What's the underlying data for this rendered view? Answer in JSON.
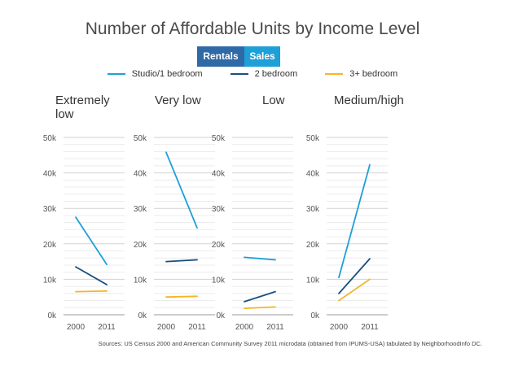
{
  "title": "Number of Affordable Units by Income Level",
  "toggle": {
    "rentals_label": "Rentals",
    "sales_label": "Sales"
  },
  "source": "Sources: US Census 2000 and American Community Survey 2011 microdata (obtained from IPUMS-USA) tabulated by NeighborhoodInfo DC.",
  "colors": {
    "studio": "#1e9fd8",
    "two_bed": "#1b4f80",
    "three_bed": "#f6b524"
  },
  "chart_data": {
    "type": "line",
    "series": [
      {
        "name": "Studio/1 bedroom",
        "color": "#1e9fd8"
      },
      {
        "name": "2 bedroom",
        "color": "#1b4f80"
      },
      {
        "name": "3+ bedroom",
        "color": "#f6b524"
      }
    ],
    "x": [
      "2000",
      "2011"
    ],
    "ylim": [
      0,
      50000
    ],
    "yticks": [
      0,
      10000,
      20000,
      30000,
      40000,
      50000
    ],
    "ytick_labels": [
      "0k",
      "10k",
      "20k",
      "30k",
      "40k",
      "50k"
    ],
    "grid": true,
    "legend": "top-center",
    "panels": [
      {
        "title": [
          "Extremely",
          "low"
        ],
        "values": [
          [
            27500,
            14200
          ],
          [
            13500,
            8500
          ],
          [
            6500,
            6700
          ]
        ]
      },
      {
        "title": [
          "Very low"
        ],
        "values": [
          [
            45800,
            24500
          ],
          [
            15000,
            15500
          ],
          [
            5000,
            5200
          ]
        ]
      },
      {
        "title": [
          "Low"
        ],
        "values": [
          [
            16200,
            15500
          ],
          [
            3700,
            6500
          ],
          [
            1800,
            2200
          ]
        ]
      },
      {
        "title": [
          "Medium/high"
        ],
        "values": [
          [
            10500,
            42300
          ],
          [
            6000,
            15800
          ],
          [
            4000,
            10000
          ]
        ]
      }
    ]
  }
}
